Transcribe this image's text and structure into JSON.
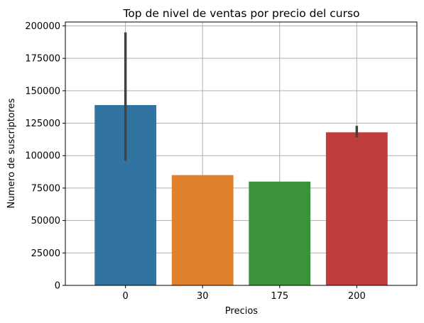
{
  "chart_data": {
    "type": "bar",
    "title": "Top de nivel de ventas por precio del curso",
    "xlabel": "Precios",
    "ylabel": "Numero de suscriptores",
    "categories": [
      "0",
      "30",
      "175",
      "200"
    ],
    "values": [
      139000,
      85000,
      80000,
      118000
    ],
    "error_low": [
      96000,
      null,
      null,
      114000
    ],
    "error_high": [
      195000,
      null,
      null,
      123000
    ],
    "colors": [
      "#3274a1",
      "#e1812c",
      "#3a923a",
      "#c03d3e"
    ],
    "ylim": [
      0,
      203000
    ],
    "yticks": [
      0,
      25000,
      50000,
      75000,
      100000,
      125000,
      150000,
      175000,
      200000
    ],
    "grid": true,
    "legend": "none"
  }
}
